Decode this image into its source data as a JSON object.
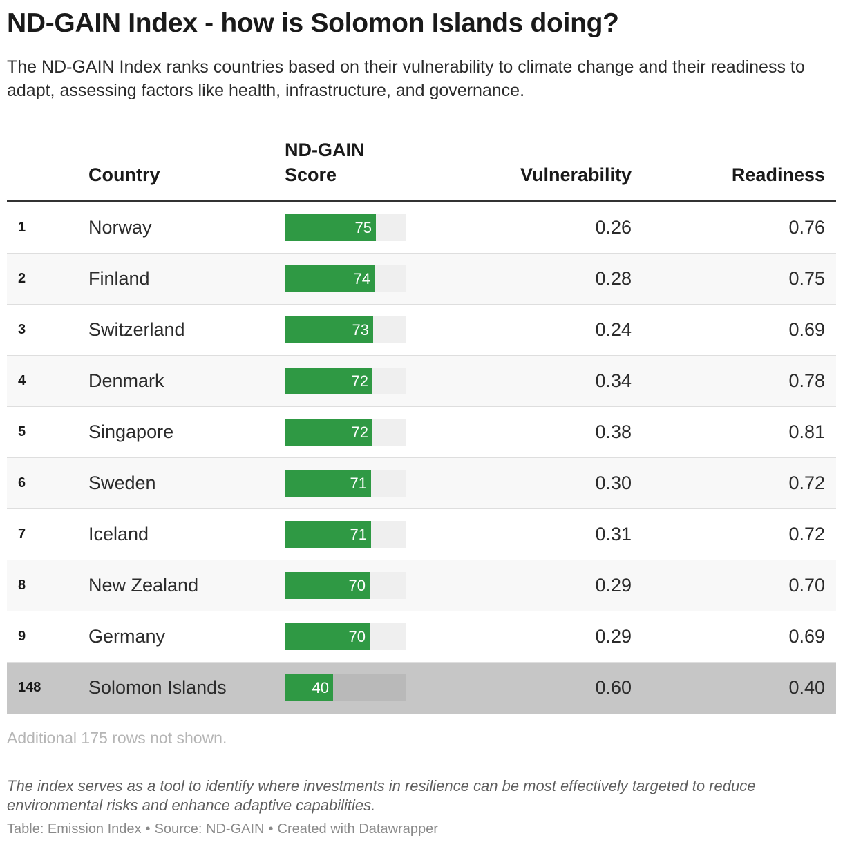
{
  "header": {
    "title": "ND-GAIN Index - how is Solomon Islands doing?",
    "subtitle": "The ND-GAIN Index ranks countries based on their vulnerability to climate change and their readiness to adapt, assessing factors like health, infrastructure, and governance."
  },
  "chart_data": {
    "type": "table",
    "columns": {
      "rank": "",
      "country": "Country",
      "score_line1": "ND-GAIN",
      "score_line2": "Score",
      "vulnerability": "Vulnerability",
      "readiness": "Readiness"
    },
    "score_range": [
      0,
      100
    ],
    "rows": [
      {
        "rank": "1",
        "country": "Norway",
        "score": 75,
        "vulnerability": "0.26",
        "readiness": "0.76"
      },
      {
        "rank": "2",
        "country": "Finland",
        "score": 74,
        "vulnerability": "0.28",
        "readiness": "0.75"
      },
      {
        "rank": "3",
        "country": "Switzerland",
        "score": 73,
        "vulnerability": "0.24",
        "readiness": "0.69"
      },
      {
        "rank": "4",
        "country": "Denmark",
        "score": 72,
        "vulnerability": "0.34",
        "readiness": "0.78"
      },
      {
        "rank": "5",
        "country": "Singapore",
        "score": 72,
        "vulnerability": "0.38",
        "readiness": "0.81"
      },
      {
        "rank": "6",
        "country": "Sweden",
        "score": 71,
        "vulnerability": "0.30",
        "readiness": "0.72"
      },
      {
        "rank": "7",
        "country": "Iceland",
        "score": 71,
        "vulnerability": "0.31",
        "readiness": "0.72"
      },
      {
        "rank": "8",
        "country": "New Zealand",
        "score": 70,
        "vulnerability": "0.29",
        "readiness": "0.70"
      },
      {
        "rank": "9",
        "country": "Germany",
        "score": 70,
        "vulnerability": "0.29",
        "readiness": "0.69"
      },
      {
        "rank": "148",
        "country": "Solomon Islands",
        "score": 40,
        "vulnerability": "0.60",
        "readiness": "0.40",
        "highlighted": true
      }
    ]
  },
  "colors": {
    "bar": "#2f9944",
    "highlight_row": "#c6c6c6"
  },
  "notes": "Additional 175 rows not shown.",
  "description": "The index serves as a tool to identify where investments in resilience can be most effectively targeted to reduce environmental risks and enhance adaptive capabilities.",
  "footer": {
    "table": "Table: Emission Index",
    "source": "Source: ND-GAIN",
    "created": "Created with Datawrapper"
  }
}
